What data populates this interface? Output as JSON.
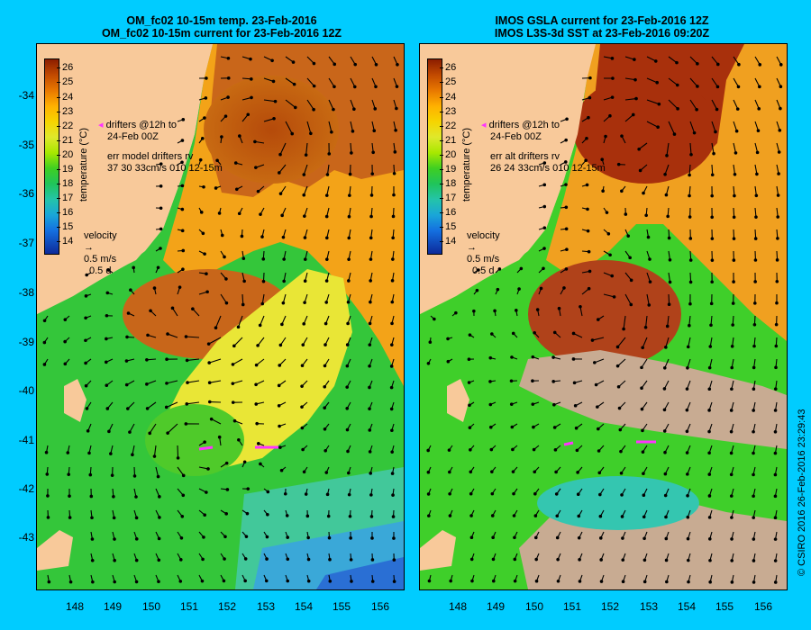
{
  "left_panel": {
    "title_line1": "OM_fc02 10-15m temp. 23-Feb-2016",
    "title_line2": "OM_fc02 10-15m current for 23-Feb-2016 12Z",
    "legend_drifters_line1": "drifters @12h to",
    "legend_drifters_line2": "24-Feb 00Z",
    "legend_err_line1": "err model drifters rv",
    "legend_err_line2": "37 30 33cm/s 010 12-15m",
    "velocity_label": "velocity",
    "velocity_speed": "0.5 m/s",
    "velocity_time": "0.5 d"
  },
  "right_panel": {
    "title_line1": "IMOS GSLA current for 23-Feb-2016 12Z",
    "title_line2": "IMOS L3S-3d SST at 23-Feb-2016 09:20Z",
    "legend_drifters_line1": "drifters @12h to",
    "legend_drifters_line2": "24-Feb 00Z",
    "legend_err_line1": "err alt drifters rv",
    "legend_err_line2": "26 24 33cm/s 010 12-15m",
    "velocity_label": "velocity",
    "velocity_speed": "0.5 m/s",
    "velocity_time": "0.5 d"
  },
  "colorbar": {
    "label": "temperature (°C)",
    "ticks": [
      "26",
      "25",
      "24",
      "23",
      "22",
      "21",
      "20",
      "19",
      "18",
      "17",
      "16",
      "15",
      "14"
    ]
  },
  "lat_ticks": [
    "-34",
    "-35",
    "-36",
    "-37",
    "-38",
    "-39",
    "-40",
    "-41",
    "-42",
    "-43"
  ],
  "lon_ticks": [
    "148",
    "149",
    "150",
    "151",
    "152",
    "153",
    "154",
    "155",
    "156"
  ],
  "credit": "© CSIRO 2016  26-Feb-2016 23:29:43",
  "colors": {
    "background": "#00ccff",
    "land": "#f8c99a",
    "drifter": "#ff33ff",
    "cloud": "#c8ab92"
  }
}
